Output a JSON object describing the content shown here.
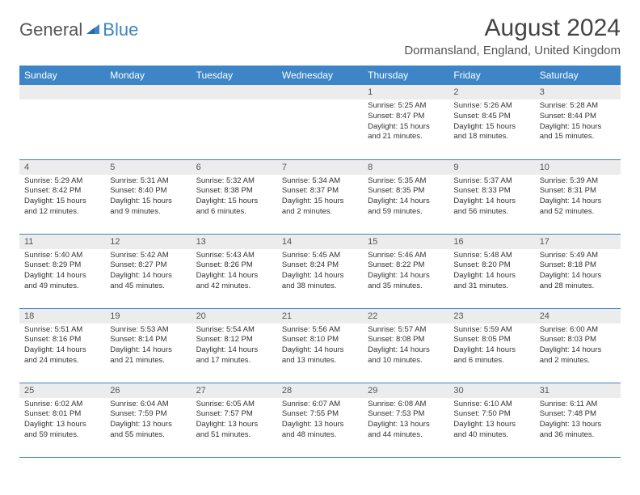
{
  "brand": {
    "general": "General",
    "blue": "Blue"
  },
  "title": "August 2024",
  "location": "Dormansland, England, United Kingdom",
  "colors": {
    "header_bg": "#3d85c6",
    "header_fg": "#ffffff",
    "daynum_bg": "#ececec",
    "row_border": "#3d85c6",
    "text": "#333333",
    "title_color": "#444444"
  },
  "days_of_week": [
    "Sunday",
    "Monday",
    "Tuesday",
    "Wednesday",
    "Thursday",
    "Friday",
    "Saturday"
  ],
  "weeks": [
    [
      null,
      null,
      null,
      null,
      {
        "n": "1",
        "sr": "5:25 AM",
        "ss": "8:47 PM",
        "dl": "15 hours and 21 minutes."
      },
      {
        "n": "2",
        "sr": "5:26 AM",
        "ss": "8:45 PM",
        "dl": "15 hours and 18 minutes."
      },
      {
        "n": "3",
        "sr": "5:28 AM",
        "ss": "8:44 PM",
        "dl": "15 hours and 15 minutes."
      }
    ],
    [
      {
        "n": "4",
        "sr": "5:29 AM",
        "ss": "8:42 PM",
        "dl": "15 hours and 12 minutes."
      },
      {
        "n": "5",
        "sr": "5:31 AM",
        "ss": "8:40 PM",
        "dl": "15 hours and 9 minutes."
      },
      {
        "n": "6",
        "sr": "5:32 AM",
        "ss": "8:38 PM",
        "dl": "15 hours and 6 minutes."
      },
      {
        "n": "7",
        "sr": "5:34 AM",
        "ss": "8:37 PM",
        "dl": "15 hours and 2 minutes."
      },
      {
        "n": "8",
        "sr": "5:35 AM",
        "ss": "8:35 PM",
        "dl": "14 hours and 59 minutes."
      },
      {
        "n": "9",
        "sr": "5:37 AM",
        "ss": "8:33 PM",
        "dl": "14 hours and 56 minutes."
      },
      {
        "n": "10",
        "sr": "5:39 AM",
        "ss": "8:31 PM",
        "dl": "14 hours and 52 minutes."
      }
    ],
    [
      {
        "n": "11",
        "sr": "5:40 AM",
        "ss": "8:29 PM",
        "dl": "14 hours and 49 minutes."
      },
      {
        "n": "12",
        "sr": "5:42 AM",
        "ss": "8:27 PM",
        "dl": "14 hours and 45 minutes."
      },
      {
        "n": "13",
        "sr": "5:43 AM",
        "ss": "8:26 PM",
        "dl": "14 hours and 42 minutes."
      },
      {
        "n": "14",
        "sr": "5:45 AM",
        "ss": "8:24 PM",
        "dl": "14 hours and 38 minutes."
      },
      {
        "n": "15",
        "sr": "5:46 AM",
        "ss": "8:22 PM",
        "dl": "14 hours and 35 minutes."
      },
      {
        "n": "16",
        "sr": "5:48 AM",
        "ss": "8:20 PM",
        "dl": "14 hours and 31 minutes."
      },
      {
        "n": "17",
        "sr": "5:49 AM",
        "ss": "8:18 PM",
        "dl": "14 hours and 28 minutes."
      }
    ],
    [
      {
        "n": "18",
        "sr": "5:51 AM",
        "ss": "8:16 PM",
        "dl": "14 hours and 24 minutes."
      },
      {
        "n": "19",
        "sr": "5:53 AM",
        "ss": "8:14 PM",
        "dl": "14 hours and 21 minutes."
      },
      {
        "n": "20",
        "sr": "5:54 AM",
        "ss": "8:12 PM",
        "dl": "14 hours and 17 minutes."
      },
      {
        "n": "21",
        "sr": "5:56 AM",
        "ss": "8:10 PM",
        "dl": "14 hours and 13 minutes."
      },
      {
        "n": "22",
        "sr": "5:57 AM",
        "ss": "8:08 PM",
        "dl": "14 hours and 10 minutes."
      },
      {
        "n": "23",
        "sr": "5:59 AM",
        "ss": "8:05 PM",
        "dl": "14 hours and 6 minutes."
      },
      {
        "n": "24",
        "sr": "6:00 AM",
        "ss": "8:03 PM",
        "dl": "14 hours and 2 minutes."
      }
    ],
    [
      {
        "n": "25",
        "sr": "6:02 AM",
        "ss": "8:01 PM",
        "dl": "13 hours and 59 minutes."
      },
      {
        "n": "26",
        "sr": "6:04 AM",
        "ss": "7:59 PM",
        "dl": "13 hours and 55 minutes."
      },
      {
        "n": "27",
        "sr": "6:05 AM",
        "ss": "7:57 PM",
        "dl": "13 hours and 51 minutes."
      },
      {
        "n": "28",
        "sr": "6:07 AM",
        "ss": "7:55 PM",
        "dl": "13 hours and 48 minutes."
      },
      {
        "n": "29",
        "sr": "6:08 AM",
        "ss": "7:53 PM",
        "dl": "13 hours and 44 minutes."
      },
      {
        "n": "30",
        "sr": "6:10 AM",
        "ss": "7:50 PM",
        "dl": "13 hours and 40 minutes."
      },
      {
        "n": "31",
        "sr": "6:11 AM",
        "ss": "7:48 PM",
        "dl": "13 hours and 36 minutes."
      }
    ]
  ],
  "labels": {
    "sunrise": "Sunrise:",
    "sunset": "Sunset:",
    "daylight": "Daylight:"
  }
}
